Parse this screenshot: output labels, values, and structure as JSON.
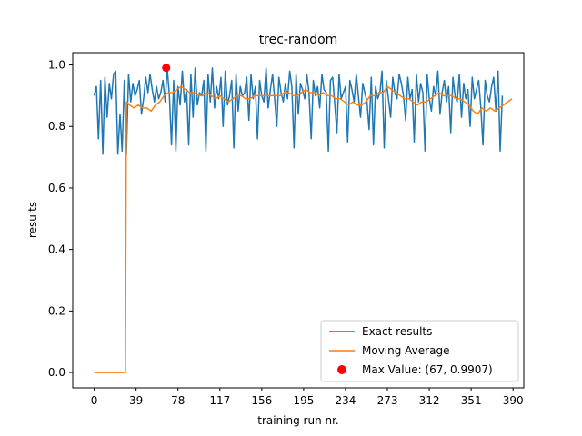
{
  "chart_data": {
    "type": "line",
    "title": "trec-random",
    "xlabel": "training run nr.",
    "ylabel": "results",
    "xlim": [
      -20,
      400
    ],
    "ylim": [
      -0.05,
      1.04
    ],
    "x_ticks": [
      0,
      39,
      78,
      117,
      156,
      195,
      234,
      273,
      312,
      351,
      390
    ],
    "y_ticks": [
      0.0,
      0.2,
      0.4,
      0.6,
      0.8,
      1.0
    ],
    "y_tick_labels": [
      "0.0",
      "0.2",
      "0.4",
      "0.6",
      "0.8",
      "1.0"
    ],
    "grid": false,
    "legend_position": "lower right",
    "series": [
      {
        "name": "Exact results",
        "color": "#1f77b4",
        "x_start": 0,
        "x_step": 2,
        "values": [
          0.9,
          0.93,
          0.76,
          0.95,
          0.71,
          0.96,
          0.83,
          0.94,
          0.89,
          0.97,
          0.98,
          0.71,
          0.84,
          0.72,
          0.95,
          0.71,
          0.97,
          0.88,
          0.94,
          0.9,
          0.92,
          0.95,
          0.84,
          0.89,
          0.96,
          0.91,
          0.97,
          0.92,
          0.88,
          0.93,
          0.89,
          0.91,
          0.95,
          0.88,
          0.99,
          0.9,
          0.74,
          0.95,
          0.72,
          0.93,
          0.87,
          0.98,
          0.88,
          0.92,
          0.74,
          0.97,
          0.83,
          0.99,
          0.87,
          0.91,
          0.9,
          0.95,
          0.72,
          0.97,
          0.88,
          0.99,
          0.86,
          0.93,
          0.89,
          0.96,
          0.8,
          0.98,
          0.87,
          0.9,
          0.95,
          0.73,
          0.97,
          0.85,
          0.93,
          0.9,
          0.91,
          0.96,
          0.82,
          0.97,
          0.89,
          0.93,
          0.76,
          0.95,
          0.9,
          0.88,
          0.99,
          0.86,
          0.92,
          0.97,
          0.89,
          0.8,
          0.96,
          0.91,
          0.88,
          0.94,
          0.89,
          0.98,
          0.93,
          0.73,
          0.97,
          0.84,
          0.94,
          0.92,
          0.89,
          0.97,
          0.91,
          0.76,
          0.95,
          0.9,
          0.93,
          0.86,
          0.97,
          0.92,
          0.91,
          0.72,
          0.95,
          0.96,
          0.87,
          0.78,
          0.97,
          0.89,
          0.91,
          0.93,
          0.75,
          0.95,
          0.92,
          0.88,
          0.97,
          0.9,
          0.83,
          0.94,
          0.91,
          0.88,
          0.79,
          0.96,
          0.74,
          0.93,
          0.89,
          0.91,
          0.98,
          0.73,
          0.95,
          0.89,
          0.83,
          0.96,
          0.91,
          0.89,
          0.97,
          0.94,
          0.9,
          0.82,
          0.96,
          0.89,
          0.92,
          0.75,
          0.97,
          0.88,
          0.94,
          0.91,
          0.72,
          0.97,
          0.89,
          0.85,
          0.93,
          0.9,
          0.98,
          0.84,
          0.91,
          0.95,
          0.88,
          0.93,
          0.78,
          0.96,
          0.9,
          0.88,
          0.97,
          0.83,
          0.94,
          0.89,
          0.92,
          0.8,
          0.96,
          0.89,
          0.92,
          0.95,
          0.86,
          0.74,
          0.95,
          0.9,
          0.88,
          0.93,
          0.96,
          0.85,
          0.98,
          0.72,
          0.9
        ]
      },
      {
        "name": "Moving Average",
        "color": "#ff7f0e",
        "points": [
          [
            0,
            0.0
          ],
          [
            29,
            0.0
          ],
          [
            30,
            0.88
          ],
          [
            33,
            0.87
          ],
          [
            37,
            0.86
          ],
          [
            41,
            0.87
          ],
          [
            45,
            0.86
          ],
          [
            49,
            0.86
          ],
          [
            53,
            0.85
          ],
          [
            57,
            0.87
          ],
          [
            61,
            0.88
          ],
          [
            65,
            0.9
          ],
          [
            69,
            0.91
          ],
          [
            73,
            0.91
          ],
          [
            77,
            0.92
          ],
          [
            81,
            0.93
          ],
          [
            85,
            0.92
          ],
          [
            89,
            0.91
          ],
          [
            93,
            0.91
          ],
          [
            97,
            0.9
          ],
          [
            101,
            0.9
          ],
          [
            105,
            0.91
          ],
          [
            109,
            0.9
          ],
          [
            113,
            0.89
          ],
          [
            117,
            0.9
          ],
          [
            121,
            0.89
          ],
          [
            125,
            0.88
          ],
          [
            129,
            0.89
          ],
          [
            133,
            0.9
          ],
          [
            137,
            0.9
          ],
          [
            141,
            0.89
          ],
          [
            145,
            0.89
          ],
          [
            149,
            0.9
          ],
          [
            153,
            0.9
          ],
          [
            157,
            0.9
          ],
          [
            161,
            0.9
          ],
          [
            165,
            0.9
          ],
          [
            169,
            0.9
          ],
          [
            173,
            0.9
          ],
          [
            177,
            0.91
          ],
          [
            181,
            0.91
          ],
          [
            185,
            0.9
          ],
          [
            189,
            0.9
          ],
          [
            193,
            0.91
          ],
          [
            197,
            0.92
          ],
          [
            201,
            0.91
          ],
          [
            205,
            0.91
          ],
          [
            209,
            0.9
          ],
          [
            213,
            0.91
          ],
          [
            217,
            0.9
          ],
          [
            221,
            0.9
          ],
          [
            225,
            0.89
          ],
          [
            229,
            0.89
          ],
          [
            233,
            0.88
          ],
          [
            237,
            0.87
          ],
          [
            241,
            0.88
          ],
          [
            245,
            0.87
          ],
          [
            249,
            0.87
          ],
          [
            253,
            0.88
          ],
          [
            257,
            0.9
          ],
          [
            261,
            0.9
          ],
          [
            265,
            0.91
          ],
          [
            269,
            0.91
          ],
          [
            273,
            0.93
          ],
          [
            277,
            0.92
          ],
          [
            281,
            0.91
          ],
          [
            285,
            0.9
          ],
          [
            289,
            0.89
          ],
          [
            293,
            0.89
          ],
          [
            297,
            0.88
          ],
          [
            301,
            0.87
          ],
          [
            305,
            0.88
          ],
          [
            309,
            0.88
          ],
          [
            313,
            0.89
          ],
          [
            317,
            0.9
          ],
          [
            321,
            0.91
          ],
          [
            325,
            0.9
          ],
          [
            329,
            0.9
          ],
          [
            333,
            0.9
          ],
          [
            337,
            0.89
          ],
          [
            341,
            0.89
          ],
          [
            345,
            0.88
          ],
          [
            349,
            0.87
          ],
          [
            353,
            0.85
          ],
          [
            357,
            0.84
          ],
          [
            361,
            0.86
          ],
          [
            365,
            0.85
          ],
          [
            369,
            0.86
          ],
          [
            373,
            0.85
          ],
          [
            377,
            0.86
          ],
          [
            381,
            0.87
          ],
          [
            385,
            0.88
          ],
          [
            389,
            0.89
          ]
        ]
      }
    ],
    "max_point": {
      "label": "Max Value: (67, 0.9907)",
      "x": 67,
      "y": 0.9907,
      "color": "#ff0000"
    }
  }
}
